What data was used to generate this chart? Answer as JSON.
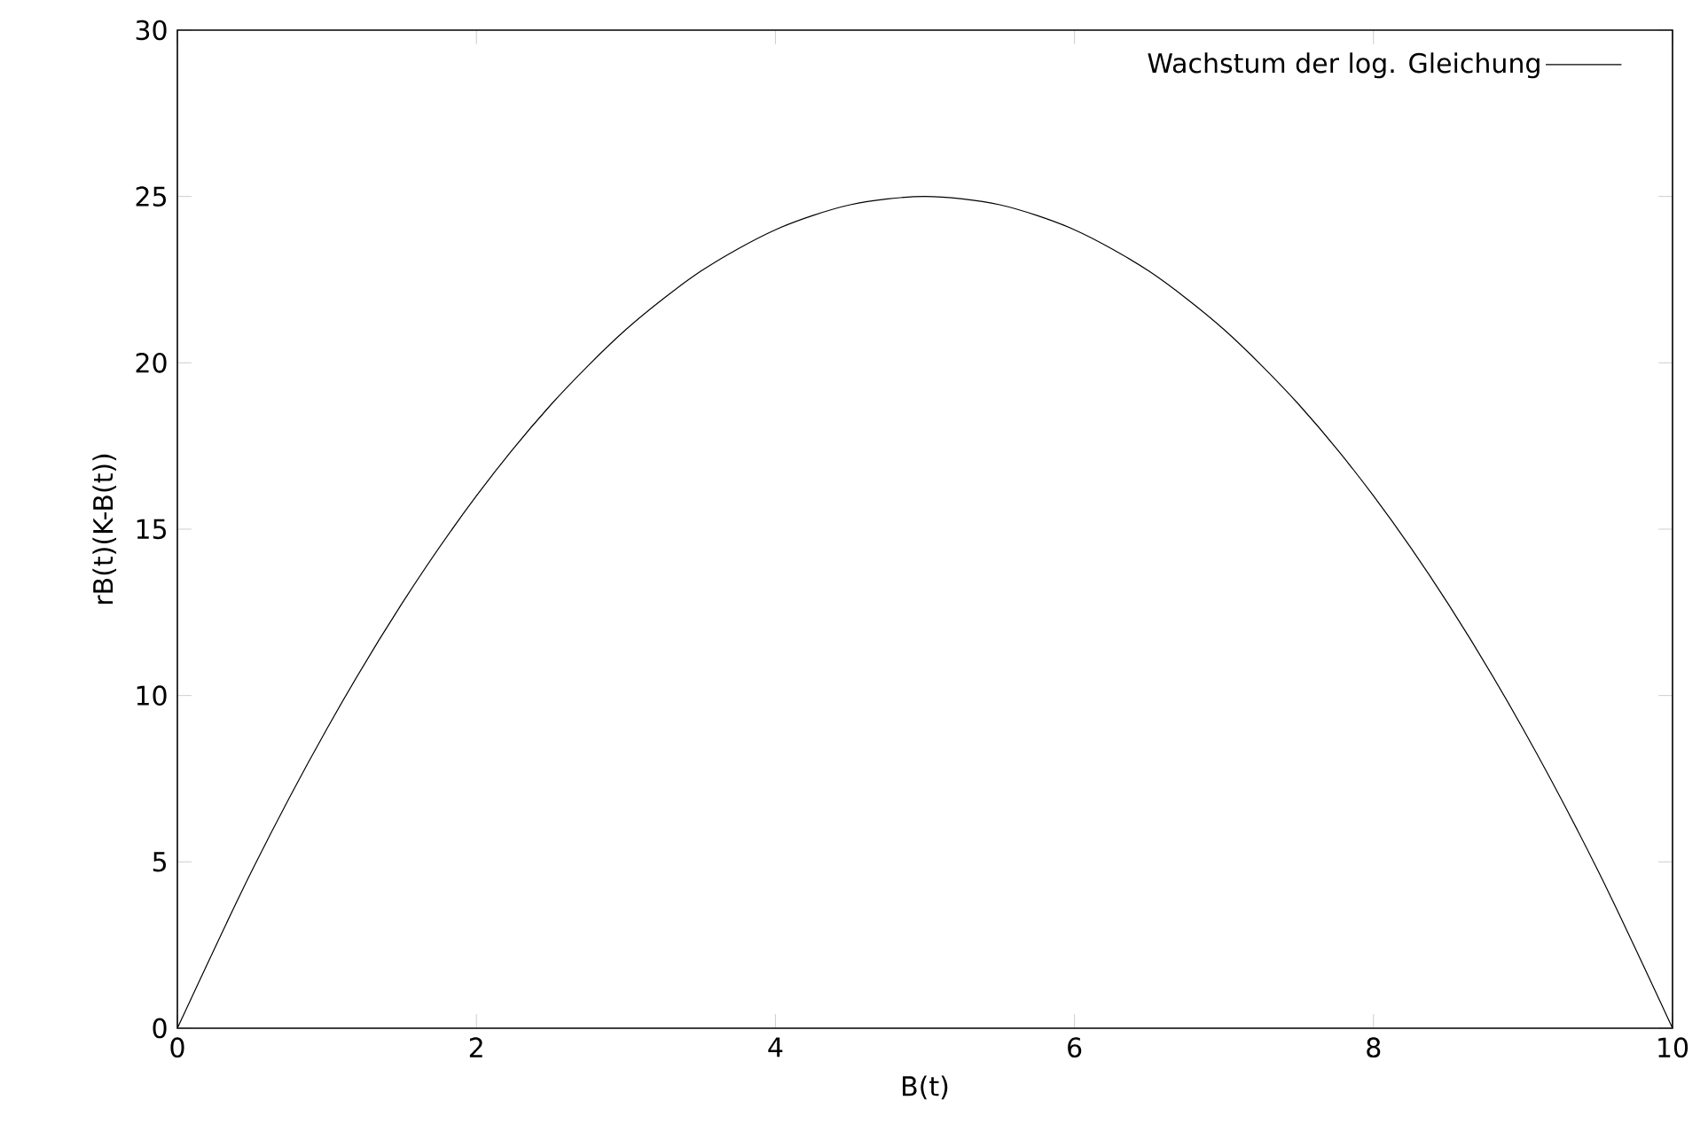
{
  "chart_data": {
    "type": "line",
    "xlabel": "B(t)",
    "ylabel": "rB(t)(K-B(t))",
    "x": [
      0,
      0.5,
      1,
      1.5,
      2,
      2.5,
      3,
      3.5,
      4,
      4.5,
      5,
      5.5,
      6,
      6.5,
      7,
      7.5,
      8,
      8.5,
      9,
      9.5,
      10
    ],
    "series": [
      {
        "name": "Wachstum der log. Gleichung",
        "color": "#000000",
        "values": [
          0,
          4.75,
          9,
          12.75,
          16,
          18.75,
          21,
          22.75,
          24,
          24.75,
          25,
          24.75,
          24,
          22.75,
          21,
          18.75,
          16,
          12.75,
          9,
          4.75,
          0
        ]
      }
    ],
    "xlim": [
      0,
      10
    ],
    "ylim": [
      0,
      30
    ],
    "xticks": [
      0,
      2,
      4,
      6,
      8,
      10
    ],
    "yticks": [
      0,
      5,
      10,
      15,
      20,
      25,
      30
    ],
    "legend": "top right",
    "marker": "none",
    "line_style": "solid",
    "grid": false
  }
}
